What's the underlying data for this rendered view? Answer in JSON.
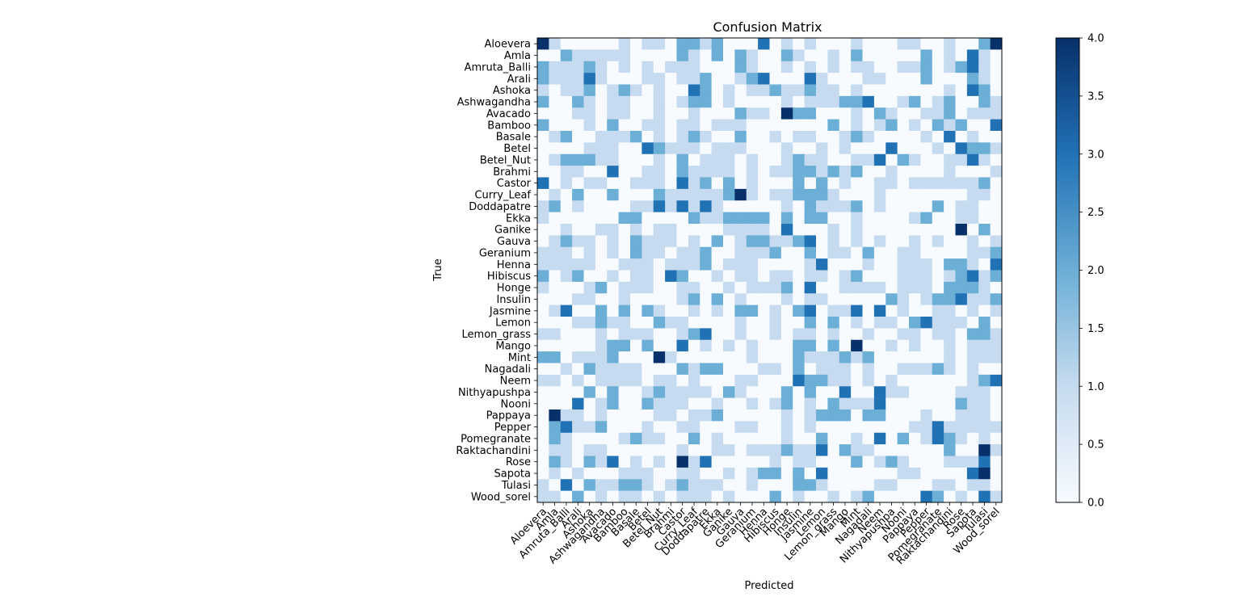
{
  "chart_data": {
    "type": "heatmap",
    "title": "Confusion Matrix",
    "xlabel": "Predicted",
    "ylabel": "True",
    "labels": [
      "Aloevera",
      "Amla",
      "Amruta_Balli",
      "Arali",
      "Ashoka",
      "Ashwagandha",
      "Avacado",
      "Bamboo",
      "Basale",
      "Betel",
      "Betel_Nut",
      "Brahmi",
      "Castor",
      "Curry_Leaf",
      "Doddapatre",
      "Ekka",
      "Ganike",
      "Gauva",
      "Geranium",
      "Henna",
      "Hibiscus",
      "Honge",
      "Insulin",
      "Jasmine",
      "Lemon",
      "Lemon_grass",
      "Mango",
      "Mint",
      "Nagadali",
      "Neem",
      "Nithyapushpa",
      "Nooni",
      "Pappaya",
      "Pepper",
      "Pomegranate",
      "Raktachandini",
      "Rose",
      "Sapota",
      "Tulasi",
      "Wood_sorel"
    ],
    "colorbar": {
      "min": 0.0,
      "max": 4.0,
      "ticks": [
        "0.0",
        "0.5",
        "1.0",
        "1.5",
        "2.0",
        "2.5",
        "3.0",
        "3.5",
        "4.0"
      ]
    },
    "colormap": [
      "#f7fbff",
      "#c6dbef",
      "#6baed6",
      "#2171b5",
      "#08306b"
    ],
    "matrix": [
      [
        4,
        1,
        0,
        0,
        0,
        0,
        0,
        1,
        0,
        1,
        1,
        0,
        2,
        2,
        1,
        2,
        0,
        0,
        0,
        3,
        0,
        1,
        0,
        1,
        0,
        0,
        0,
        1,
        0,
        0,
        0,
        1,
        1,
        0,
        0,
        1,
        0,
        0,
        2,
        4
      ],
      [
        0,
        0,
        2,
        1,
        1,
        1,
        1,
        1,
        0,
        0,
        0,
        0,
        2,
        1,
        0,
        2,
        0,
        2,
        1,
        0,
        0,
        2,
        1,
        0,
        0,
        1,
        0,
        2,
        0,
        0,
        0,
        0,
        0,
        2,
        0,
        1,
        0,
        3,
        1,
        0
      ],
      [
        2,
        1,
        1,
        1,
        2,
        1,
        0,
        1,
        0,
        1,
        0,
        1,
        1,
        1,
        0,
        0,
        0,
        2,
        1,
        0,
        0,
        1,
        0,
        1,
        0,
        1,
        0,
        1,
        1,
        0,
        0,
        1,
        1,
        2,
        0,
        1,
        2,
        3,
        1,
        0
      ],
      [
        2,
        1,
        1,
        1,
        3,
        1,
        0,
        0,
        0,
        1,
        1,
        0,
        1,
        1,
        2,
        0,
        0,
        1,
        2,
        3,
        0,
        0,
        0,
        3,
        1,
        0,
        0,
        0,
        1,
        1,
        0,
        0,
        0,
        2,
        0,
        0,
        0,
        2,
        1,
        0
      ],
      [
        1,
        0,
        1,
        1,
        2,
        0,
        1,
        2,
        1,
        0,
        1,
        0,
        0,
        3,
        2,
        0,
        1,
        0,
        1,
        1,
        2,
        1,
        1,
        2,
        1,
        1,
        0,
        1,
        0,
        0,
        0,
        0,
        0,
        0,
        0,
        1,
        0,
        3,
        2,
        0
      ],
      [
        2,
        0,
        0,
        2,
        1,
        0,
        1,
        1,
        0,
        0,
        1,
        0,
        1,
        2,
        2,
        0,
        1,
        0,
        0,
        0,
        0,
        1,
        0,
        1,
        1,
        1,
        2,
        2,
        3,
        0,
        0,
        1,
        2,
        0,
        1,
        2,
        0,
        0,
        2,
        1
      ],
      [
        0,
        0,
        0,
        1,
        1,
        0,
        1,
        1,
        0,
        0,
        1,
        0,
        0,
        1,
        0,
        0,
        0,
        2,
        1,
        1,
        0,
        4,
        2,
        2,
        0,
        0,
        0,
        1,
        0,
        2,
        1,
        0,
        0,
        1,
        1,
        2,
        0,
        1,
        1,
        1
      ],
      [
        2,
        0,
        0,
        0,
        1,
        0,
        2,
        0,
        0,
        1,
        1,
        0,
        1,
        1,
        0,
        1,
        1,
        1,
        0,
        0,
        0,
        0,
        0,
        0,
        0,
        2,
        0,
        1,
        0,
        1,
        2,
        0,
        1,
        0,
        2,
        1,
        2,
        0,
        0,
        3
      ],
      [
        0,
        1,
        2,
        0,
        0,
        1,
        1,
        1,
        2,
        0,
        1,
        0,
        1,
        2,
        1,
        0,
        0,
        2,
        0,
        0,
        1,
        0,
        1,
        1,
        0,
        0,
        1,
        2,
        1,
        0,
        0,
        0,
        0,
        1,
        0,
        3,
        0,
        1,
        0,
        0
      ],
      [
        0,
        0,
        0,
        0,
        1,
        1,
        1,
        0,
        0,
        3,
        2,
        1,
        1,
        1,
        0,
        1,
        1,
        1,
        0,
        0,
        0,
        1,
        0,
        0,
        1,
        0,
        1,
        0,
        0,
        0,
        3,
        0,
        0,
        0,
        1,
        0,
        3,
        2,
        2,
        1
      ],
      [
        0,
        1,
        2,
        2,
        2,
        1,
        1,
        0,
        0,
        0,
        1,
        0,
        2,
        0,
        1,
        1,
        1,
        0,
        1,
        0,
        0,
        1,
        2,
        1,
        1,
        0,
        0,
        1,
        1,
        3,
        0,
        2,
        1,
        0,
        0,
        1,
        1,
        3,
        1,
        0
      ],
      [
        0,
        0,
        1,
        1,
        0,
        0,
        3,
        0,
        0,
        1,
        1,
        0,
        2,
        1,
        1,
        1,
        1,
        0,
        1,
        0,
        1,
        1,
        2,
        2,
        1,
        2,
        1,
        2,
        0,
        0,
        1,
        0,
        0,
        0,
        0,
        1,
        0,
        0,
        0,
        1
      ],
      [
        3,
        0,
        1,
        0,
        1,
        1,
        0,
        0,
        1,
        1,
        1,
        0,
        3,
        1,
        2,
        0,
        2,
        0,
        1,
        0,
        0,
        0,
        2,
        0,
        2,
        0,
        1,
        0,
        0,
        1,
        1,
        0,
        1,
        1,
        1,
        1,
        1,
        1,
        2,
        0
      ],
      [
        0,
        1,
        0,
        2,
        0,
        0,
        2,
        0,
        0,
        0,
        2,
        1,
        1,
        1,
        1,
        1,
        2,
        4,
        1,
        0,
        1,
        1,
        2,
        2,
        2,
        1,
        0,
        0,
        0,
        1,
        0,
        0,
        0,
        0,
        0,
        0,
        0,
        1,
        1,
        0
      ],
      [
        1,
        2,
        0,
        1,
        0,
        0,
        0,
        0,
        1,
        1,
        3,
        1,
        3,
        1,
        3,
        1,
        0,
        0,
        0,
        0,
        0,
        1,
        0,
        2,
        1,
        1,
        1,
        2,
        0,
        1,
        0,
        0,
        0,
        0,
        2,
        0,
        1,
        1,
        0,
        0
      ],
      [
        1,
        0,
        0,
        0,
        0,
        0,
        0,
        2,
        2,
        0,
        0,
        0,
        0,
        2,
        1,
        1,
        2,
        2,
        2,
        2,
        0,
        2,
        0,
        2,
        2,
        0,
        0,
        1,
        0,
        0,
        0,
        0,
        1,
        2,
        0,
        0,
        1,
        1,
        0,
        0
      ],
      [
        0,
        0,
        1,
        0,
        0,
        1,
        1,
        0,
        1,
        0,
        1,
        1,
        0,
        0,
        0,
        0,
        1,
        1,
        1,
        1,
        0,
        3,
        0,
        0,
        0,
        1,
        0,
        1,
        0,
        0,
        0,
        0,
        0,
        0,
        0,
        0,
        4,
        0,
        2,
        0
      ],
      [
        0,
        1,
        2,
        1,
        1,
        0,
        1,
        0,
        2,
        1,
        1,
        1,
        0,
        1,
        0,
        2,
        0,
        1,
        2,
        2,
        1,
        1,
        2,
        3,
        0,
        1,
        0,
        1,
        0,
        1,
        0,
        0,
        1,
        0,
        1,
        0,
        0,
        1,
        0,
        1
      ],
      [
        1,
        1,
        1,
        0,
        1,
        0,
        1,
        0,
        2,
        1,
        1,
        0,
        1,
        1,
        2,
        0,
        0,
        1,
        1,
        1,
        2,
        0,
        0,
        2,
        0,
        1,
        1,
        0,
        2,
        0,
        0,
        1,
        1,
        0,
        0,
        0,
        0,
        1,
        1,
        2
      ],
      [
        1,
        1,
        1,
        1,
        1,
        0,
        0,
        1,
        1,
        1,
        0,
        1,
        1,
        1,
        2,
        0,
        1,
        1,
        1,
        0,
        0,
        0,
        0,
        1,
        3,
        0,
        0,
        0,
        1,
        0,
        0,
        1,
        1,
        1,
        0,
        2,
        2,
        1,
        0,
        3
      ],
      [
        2,
        0,
        1,
        2,
        0,
        0,
        1,
        0,
        1,
        1,
        0,
        3,
        2,
        0,
        0,
        1,
        0,
        1,
        1,
        0,
        1,
        1,
        0,
        1,
        1,
        0,
        1,
        2,
        0,
        0,
        0,
        1,
        1,
        1,
        0,
        1,
        2,
        3,
        1,
        2
      ],
      [
        1,
        0,
        0,
        0,
        1,
        2,
        0,
        1,
        1,
        1,
        0,
        0,
        1,
        1,
        0,
        0,
        1,
        0,
        1,
        1,
        1,
        2,
        0,
        3,
        0,
        0,
        1,
        1,
        1,
        1,
        0,
        1,
        1,
        1,
        0,
        2,
        2,
        2,
        1,
        0
      ],
      [
        0,
        0,
        0,
        1,
        1,
        0,
        0,
        1,
        0,
        0,
        0,
        0,
        1,
        2,
        0,
        2,
        0,
        1,
        0,
        0,
        0,
        1,
        0,
        1,
        1,
        0,
        0,
        0,
        0,
        0,
        2,
        1,
        0,
        1,
        2,
        2,
        3,
        1,
        1,
        2
      ],
      [
        0,
        1,
        3,
        0,
        0,
        2,
        0,
        2,
        0,
        2,
        1,
        0,
        0,
        1,
        0,
        1,
        0,
        2,
        2,
        0,
        1,
        0,
        2,
        3,
        0,
        1,
        1,
        3,
        0,
        3,
        0,
        1,
        0,
        0,
        1,
        1,
        0,
        1,
        0,
        1
      ],
      [
        0,
        0,
        0,
        1,
        1,
        2,
        1,
        1,
        0,
        0,
        2,
        1,
        1,
        0,
        0,
        0,
        0,
        1,
        0,
        0,
        1,
        0,
        0,
        2,
        0,
        2,
        0,
        1,
        0,
        1,
        1,
        0,
        2,
        3,
        1,
        1,
        1,
        0,
        2,
        0
      ],
      [
        1,
        1,
        0,
        0,
        0,
        1,
        0,
        1,
        1,
        1,
        0,
        0,
        1,
        2,
        3,
        0,
        0,
        1,
        0,
        0,
        1,
        0,
        1,
        1,
        0,
        1,
        0,
        0,
        1,
        0,
        0,
        1,
        1,
        0,
        1,
        1,
        0,
        2,
        2,
        1
      ],
      [
        0,
        0,
        0,
        0,
        0,
        1,
        2,
        2,
        0,
        2,
        0,
        0,
        3,
        0,
        1,
        0,
        1,
        0,
        1,
        0,
        0,
        0,
        2,
        2,
        0,
        2,
        0,
        4,
        0,
        0,
        1,
        0,
        1,
        0,
        0,
        1,
        0,
        1,
        1,
        1
      ],
      [
        2,
        2,
        0,
        1,
        1,
        1,
        2,
        0,
        0,
        0,
        4,
        1,
        0,
        0,
        0,
        0,
        0,
        0,
        1,
        0,
        0,
        0,
        2,
        1,
        1,
        1,
        2,
        1,
        2,
        0,
        0,
        0,
        0,
        0,
        0,
        1,
        0,
        1,
        1,
        1
      ],
      [
        0,
        0,
        1,
        0,
        2,
        1,
        1,
        1,
        1,
        0,
        0,
        0,
        2,
        1,
        2,
        2,
        0,
        0,
        0,
        1,
        1,
        0,
        2,
        0,
        1,
        1,
        1,
        0,
        1,
        0,
        0,
        1,
        1,
        1,
        2,
        1,
        0,
        1,
        0,
        0
      ],
      [
        1,
        1,
        0,
        1,
        0,
        1,
        1,
        1,
        1,
        0,
        1,
        1,
        0,
        1,
        0,
        0,
        0,
        1,
        1,
        0,
        0,
        0,
        3,
        2,
        2,
        1,
        1,
        0,
        1,
        0,
        1,
        0,
        0,
        0,
        0,
        0,
        0,
        1,
        2,
        3
      ],
      [
        0,
        0,
        0,
        0,
        2,
        0,
        2,
        0,
        0,
        1,
        2,
        1,
        1,
        1,
        1,
        0,
        2,
        1,
        0,
        0,
        0,
        2,
        0,
        2,
        0,
        0,
        3,
        0,
        0,
        3,
        1,
        1,
        0,
        0,
        0,
        0,
        1,
        1,
        1,
        0
      ],
      [
        0,
        0,
        0,
        3,
        0,
        1,
        2,
        0,
        0,
        2,
        1,
        1,
        1,
        0,
        0,
        1,
        0,
        0,
        1,
        0,
        1,
        2,
        0,
        1,
        0,
        2,
        1,
        1,
        1,
        3,
        0,
        0,
        0,
        0,
        0,
        0,
        2,
        1,
        1,
        0
      ],
      [
        0,
        4,
        1,
        1,
        0,
        1,
        0,
        0,
        0,
        0,
        1,
        1,
        0,
        1,
        1,
        2,
        0,
        0,
        0,
        0,
        0,
        1,
        0,
        1,
        2,
        2,
        2,
        0,
        2,
        2,
        0,
        0,
        0,
        1,
        0,
        0,
        1,
        1,
        1,
        0
      ],
      [
        0,
        2,
        3,
        1,
        1,
        2,
        0,
        0,
        0,
        1,
        0,
        0,
        1,
        1,
        0,
        0,
        0,
        1,
        1,
        0,
        0,
        1,
        0,
        1,
        0,
        0,
        0,
        0,
        0,
        0,
        0,
        0,
        1,
        1,
        3,
        1,
        1,
        1,
        1,
        1
      ],
      [
        0,
        2,
        1,
        0,
        0,
        0,
        0,
        1,
        2,
        1,
        1,
        0,
        0,
        2,
        0,
        1,
        0,
        0,
        0,
        0,
        0,
        1,
        0,
        0,
        2,
        0,
        0,
        1,
        0,
        3,
        0,
        2,
        0,
        1,
        3,
        2,
        1,
        0,
        1,
        0
      ],
      [
        0,
        1,
        1,
        0,
        1,
        1,
        0,
        0,
        0,
        0,
        0,
        0,
        1,
        0,
        0,
        1,
        1,
        0,
        1,
        1,
        1,
        2,
        1,
        1,
        3,
        0,
        2,
        1,
        1,
        0,
        0,
        0,
        0,
        0,
        0,
        2,
        0,
        0,
        4,
        1
      ],
      [
        0,
        2,
        1,
        0,
        2,
        1,
        3,
        0,
        1,
        0,
        1,
        0,
        4,
        1,
        3,
        0,
        0,
        0,
        0,
        0,
        1,
        0,
        1,
        1,
        0,
        0,
        0,
        2,
        0,
        1,
        2,
        1,
        0,
        0,
        0,
        1,
        1,
        1,
        3,
        0
      ],
      [
        0,
        1,
        0,
        1,
        0,
        0,
        0,
        1,
        1,
        1,
        0,
        0,
        1,
        1,
        0,
        0,
        1,
        0,
        1,
        2,
        2,
        0,
        2,
        0,
        3,
        0,
        0,
        0,
        0,
        0,
        0,
        1,
        1,
        0,
        0,
        0,
        0,
        3,
        4,
        0
      ],
      [
        1,
        0,
        3,
        0,
        2,
        1,
        1,
        2,
        2,
        1,
        0,
        1,
        2,
        1,
        1,
        1,
        0,
        0,
        1,
        0,
        0,
        0,
        2,
        2,
        1,
        0,
        0,
        0,
        0,
        1,
        1,
        0,
        0,
        0,
        1,
        1,
        0,
        1,
        1,
        0
      ],
      [
        1,
        1,
        0,
        2,
        0,
        1,
        0,
        1,
        1,
        0,
        1,
        0,
        1,
        1,
        1,
        0,
        1,
        0,
        0,
        0,
        2,
        0,
        1,
        0,
        0,
        1,
        0,
        1,
        2,
        0,
        0,
        0,
        0,
        3,
        2,
        0,
        1,
        0,
        3,
        1
      ]
    ]
  }
}
